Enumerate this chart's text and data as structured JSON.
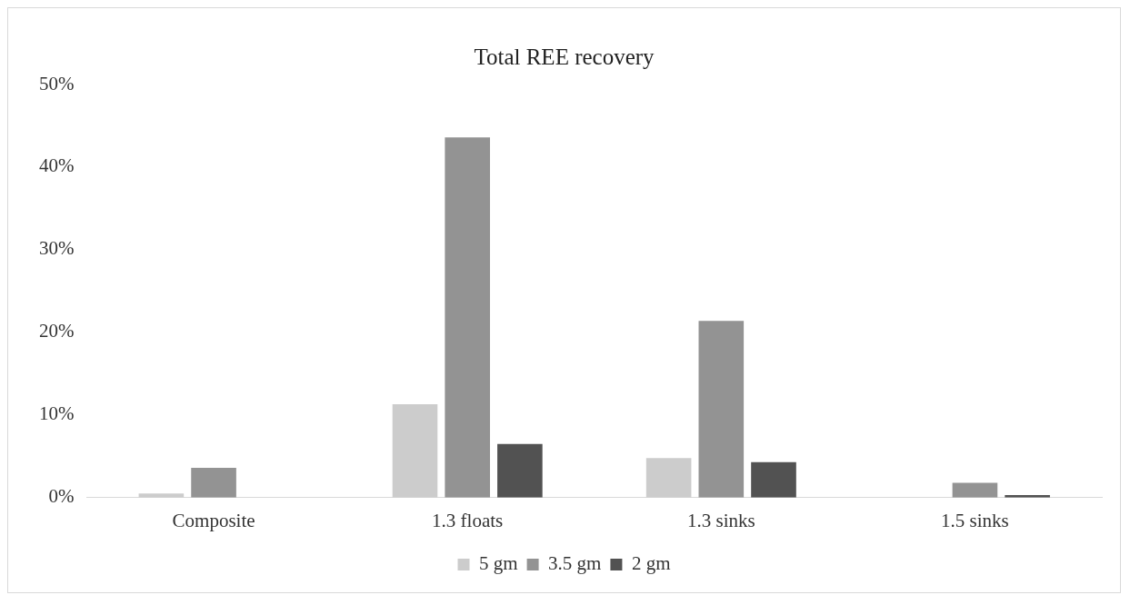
{
  "chart_data": {
    "type": "bar",
    "title": "Total REE recovery",
    "categories": [
      "Composite",
      "1.3 floats",
      "1.3 sinks",
      "1.5 sinks"
    ],
    "series": [
      {
        "name": "5 gm",
        "color": "#cccccc",
        "values": [
          0.5,
          11.3,
          4.8,
          0
        ]
      },
      {
        "name": "3.5 gm",
        "color": "#939393",
        "values": [
          3.6,
          43.6,
          21.4,
          1.8
        ]
      },
      {
        "name": "2 gm",
        "color": "#525252",
        "values": [
          0,
          6.5,
          4.3,
          0.3
        ]
      }
    ],
    "ylim": [
      0,
      50
    ],
    "yticks": [
      {
        "value": 0,
        "label": "0%"
      },
      {
        "value": 10,
        "label": "10%"
      },
      {
        "value": 20,
        "label": "20%"
      },
      {
        "value": 30,
        "label": "30%"
      },
      {
        "value": 40,
        "label": "40%"
      },
      {
        "value": 50,
        "label": "50%"
      }
    ],
    "grid": false,
    "legend": "bottom"
  }
}
